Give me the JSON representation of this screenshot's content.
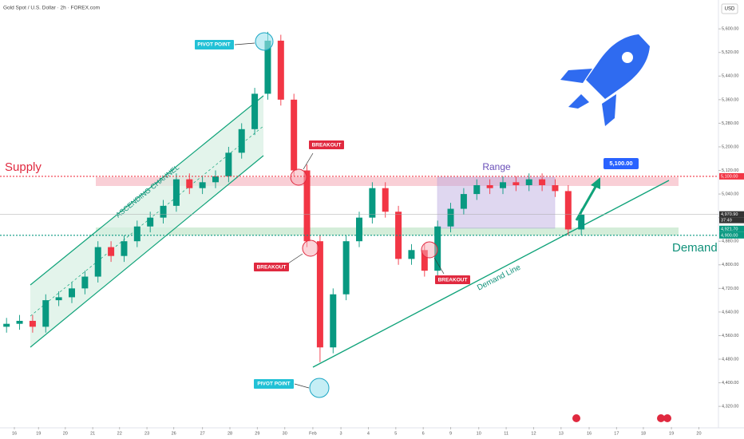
{
  "chart_data": {
    "type": "candlestick",
    "title": "Gold Spot / U.S. Dollar · 2h · FOREX.com",
    "currency": "USD",
    "x": [
      1,
      3,
      5,
      7,
      9,
      11,
      13,
      15,
      17,
      19,
      21,
      23,
      25,
      27,
      29,
      31,
      33,
      35,
      37,
      39,
      41,
      43,
      45,
      47,
      49,
      51,
      53,
      55,
      57,
      59,
      61,
      63,
      65,
      67,
      69,
      71,
      73,
      75,
      77,
      79,
      81,
      83,
      85,
      87,
      89
    ],
    "open": [
      4590,
      4600,
      4610,
      4590,
      4680,
      4690,
      4720,
      4760,
      4860,
      4830,
      4880,
      4930,
      4960,
      5000,
      5090,
      5060,
      5080,
      5100,
      5180,
      5260,
      5380,
      5560,
      5360,
      5120,
      4880,
      4520,
      4700,
      4880,
      4960,
      5060,
      4980,
      4820,
      4850,
      4780,
      4930,
      4990,
      5040,
      5070,
      5060,
      5080,
      5070,
      5090,
      5070,
      5050,
      4920
    ],
    "high": [
      4620,
      4630,
      4630,
      4700,
      4710,
      4740,
      4780,
      4880,
      4880,
      4900,
      4950,
      4980,
      5020,
      5110,
      5110,
      5100,
      5120,
      5200,
      5280,
      5400,
      5590,
      5580,
      5380,
      5140,
      4900,
      4720,
      4900,
      4980,
      5080,
      5080,
      5000,
      4870,
      4870,
      4950,
      5010,
      5060,
      5090,
      5090,
      5100,
      5100,
      5110,
      5110,
      5090,
      5070,
      4990
    ],
    "low": [
      4570,
      4580,
      4570,
      4570,
      4660,
      4670,
      4700,
      4740,
      4810,
      4810,
      4860,
      4910,
      4940,
      4980,
      5040,
      5040,
      5060,
      5080,
      5160,
      5240,
      5360,
      5340,
      5100,
      4860,
      4470,
      4500,
      4680,
      4860,
      4940,
      4960,
      4800,
      4800,
      4760,
      4760,
      4910,
      4970,
      5020,
      5040,
      5040,
      5050,
      5050,
      5050,
      5030,
      4900,
      4900
    ],
    "close": [
      4600,
      4610,
      4590,
      4680,
      4690,
      4720,
      4760,
      4860,
      4830,
      4880,
      4930,
      4960,
      5000,
      5090,
      5060,
      5080,
      5100,
      5180,
      5260,
      5380,
      5560,
      5360,
      5120,
      4880,
      4520,
      4700,
      4880,
      4960,
      5060,
      4980,
      4820,
      4850,
      4780,
      4930,
      4990,
      5040,
      5070,
      5060,
      5080,
      5070,
      5090,
      5070,
      5050,
      4920,
      4970
    ],
    "up_color": "#089981",
    "down_color": "#f23645",
    "xlim": [
      0,
      110
    ],
    "ylim": [
      4250,
      5660
    ],
    "xticks": [
      {
        "value": 2.2,
        "label": "16"
      },
      {
        "value": 5.9,
        "label": "19"
      },
      {
        "value": 10,
        "label": "20"
      },
      {
        "value": 14.2,
        "label": "21"
      },
      {
        "value": 18.3,
        "label": "22"
      },
      {
        "value": 22.5,
        "label": "23"
      },
      {
        "value": 26.6,
        "label": "26"
      },
      {
        "value": 31,
        "label": "27"
      },
      {
        "value": 35.2,
        "label": "28"
      },
      {
        "value": 39.4,
        "label": "29"
      },
      {
        "value": 43.6,
        "label": "30"
      },
      {
        "value": 47.9,
        "label": "Feb"
      },
      {
        "value": 52.2,
        "label": "3"
      },
      {
        "value": 56.4,
        "label": "4"
      },
      {
        "value": 60.6,
        "label": "5"
      },
      {
        "value": 64.8,
        "label": "6"
      },
      {
        "value": 69,
        "label": "9"
      },
      {
        "value": 73.3,
        "label": "10"
      },
      {
        "value": 77.5,
        "label": "11"
      },
      {
        "value": 81.7,
        "label": "12"
      },
      {
        "value": 85.9,
        "label": "13"
      },
      {
        "value": 90.2,
        "label": "16"
      },
      {
        "value": 94.4,
        "label": "17"
      },
      {
        "value": 98.5,
        "label": "18"
      },
      {
        "value": 102.8,
        "label": "19"
      },
      {
        "value": 107,
        "label": "20"
      }
    ],
    "yticks": [
      {
        "value": 4320,
        "label": "4,320.00"
      },
      {
        "value": 4400,
        "label": "4,400.00"
      },
      {
        "value": 4480,
        "label": "4,480.00"
      },
      {
        "value": 4560,
        "label": "4,560.00"
      },
      {
        "value": 4640,
        "label": "4,640.00"
      },
      {
        "value": 4720,
        "label": "4,720.00"
      },
      {
        "value": 4800,
        "label": "4,800.00"
      },
      {
        "value": 4880,
        "label": "4,880.00"
      },
      {
        "value": 4960,
        "label": "4,960.00"
      },
      {
        "value": 5040,
        "label": "5,040.00"
      },
      {
        "value": 5120,
        "label": "5,120.00"
      },
      {
        "value": 5200,
        "label": "5,200.00"
      },
      {
        "value": 5280,
        "label": "5,280.00"
      },
      {
        "value": 5360,
        "label": "5,360.00"
      },
      {
        "value": 5440,
        "label": "5,440.00"
      },
      {
        "value": 5520,
        "label": "5,520.00"
      },
      {
        "value": 5600,
        "label": "5,600.00"
      }
    ],
    "levels": [
      {
        "value": 5100,
        "label": "5,100.00",
        "color": "#f23645",
        "line": "dotted"
      },
      {
        "value": 4970.9,
        "label": "4,970.90",
        "color": "#333333",
        "line": "thin"
      },
      {
        "value": 4921.7,
        "label": "4,921.70",
        "color": "#089981",
        "line": "none"
      },
      {
        "value": 4900,
        "label": "4,900.00",
        "color": "#089981",
        "line": "dotted"
      }
    ],
    "countdown": "37:49",
    "annotations": {
      "supply": "Supply",
      "demand": "Demand",
      "range": "Range",
      "channel": "ASCENDING CHANNEL",
      "demand_line": "Demand Line",
      "breakouts": [
        "BREAKOUT",
        "BREAKOUT",
        "BREAKOUT"
      ],
      "pivots": [
        "PIVOT POINT",
        "PIVOT POINT"
      ],
      "target": "5,100.00"
    }
  }
}
